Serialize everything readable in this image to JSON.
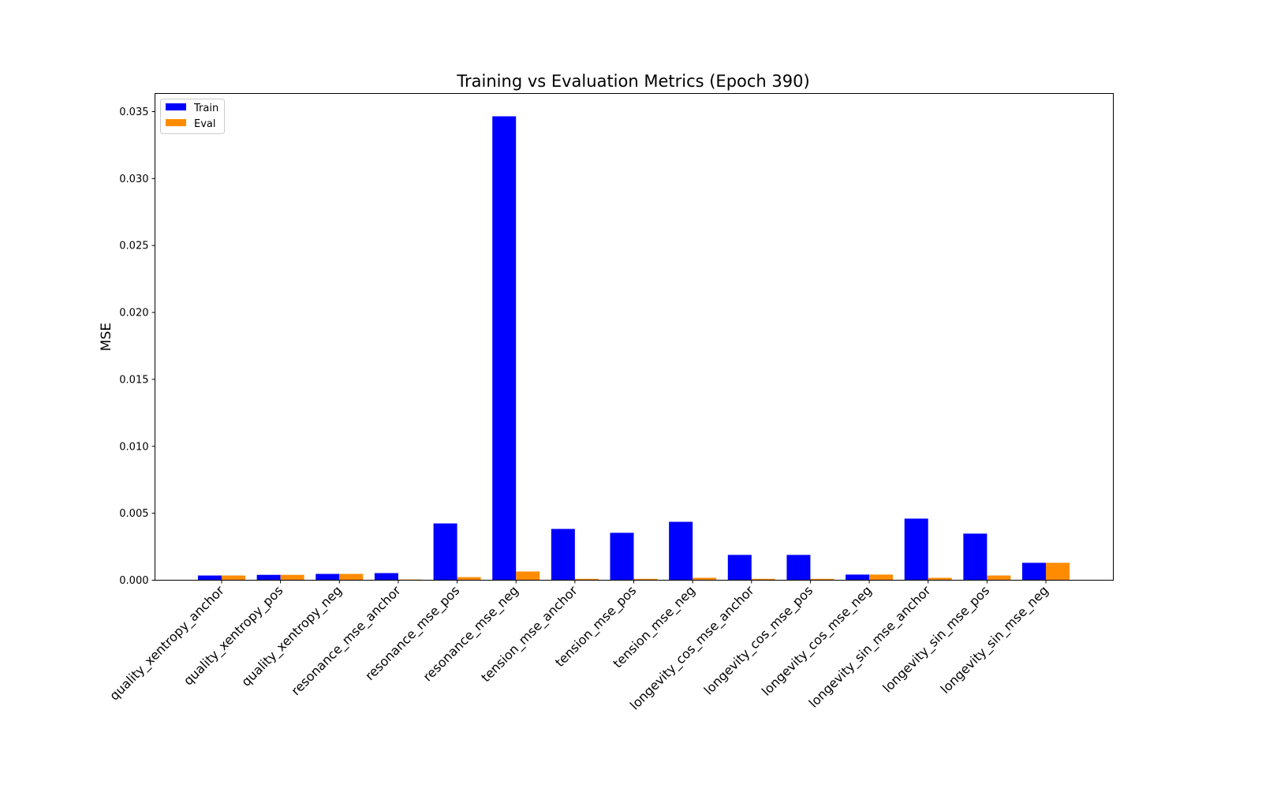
{
  "chart_data": {
    "type": "bar",
    "title": "Training vs Evaluation Metrics (Epoch 390)",
    "xlabel": "",
    "ylabel": "MSE",
    "ylim": [
      0,
      0.0362
    ],
    "yticks": [
      "0.000",
      "0.005",
      "0.010",
      "0.015",
      "0.020",
      "0.025",
      "0.030",
      "0.035"
    ],
    "ytick_values": [
      0,
      0.005,
      0.01,
      0.015,
      0.02,
      0.025,
      0.03,
      0.035
    ],
    "grid": false,
    "legend_position": "top-left",
    "categories": [
      "quality_xentropy_anchor",
      "quality_xentropy_pos",
      "quality_xentropy_neg",
      "resonance_mse_anchor",
      "resonance_mse_pos",
      "resonance_mse_neg",
      "tension_mse_anchor",
      "tension_mse_pos",
      "tension_mse_neg",
      "longevity_cos_mse_anchor",
      "longevity_cos_mse_pos",
      "longevity_cos_mse_neg",
      "longevity_sin_mse_anchor",
      "longevity_sin_mse_pos",
      "longevity_sin_mse_neg"
    ],
    "series": [
      {
        "name": "Train",
        "color": "#0000ff",
        "values": [
          0.00035,
          0.0004,
          0.00047,
          0.00053,
          0.00424,
          0.03465,
          0.00383,
          0.00354,
          0.00436,
          0.00189,
          0.00189,
          0.00042,
          0.0046,
          0.00348,
          0.0013
        ]
      },
      {
        "name": "Eval",
        "color": "#ff8c00",
        "values": [
          0.00035,
          0.0004,
          0.00047,
          5e-05,
          0.00023,
          0.00065,
          0.0001,
          0.0001,
          0.00018,
          0.0001,
          0.0001,
          0.00042,
          0.00018,
          0.00035,
          0.0013
        ]
      }
    ]
  }
}
